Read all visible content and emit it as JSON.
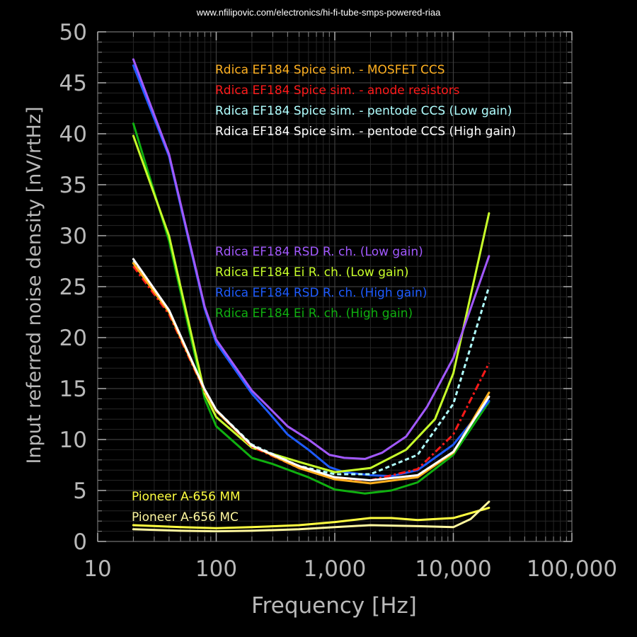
{
  "source_url": "www.nfilipovic.com/electronics/hi-fi-tube-smps-powered-riaa",
  "colors": {
    "background": "#000000",
    "grid_major": "#3c3c3c",
    "grid_minor": "#262626",
    "axis_text": "#b9b9b9"
  },
  "chart_data": {
    "type": "line",
    "xscale": "log",
    "xlabel": "Frequency [Hz]",
    "ylabel": "Input referred noise density [nV/rtHz]",
    "xlim": [
      10,
      100000
    ],
    "ylim": [
      0,
      50
    ],
    "xticks": [
      10,
      100,
      1000,
      10000,
      100000
    ],
    "xtick_labels": [
      "10",
      "100",
      "1,000",
      "10,000",
      "100,000"
    ],
    "yticks": [
      0,
      5,
      10,
      15,
      20,
      25,
      30,
      35,
      40,
      45,
      50
    ],
    "ytick_labels": [
      "0",
      "5",
      "10",
      "15",
      "20",
      "25",
      "30",
      "35",
      "40",
      "45",
      "50"
    ],
    "grid": true,
    "legend_groups": [
      {
        "placement": "top-center",
        "entries": [
          "Rdica EF184 Spice sim. - MOSFET CCS",
          "Rdica EF184 Spice sim. - anode resistors",
          "Rdica EF184 Spice sim. - pentode CCS (Low gain)",
          "Rdica EF184 Spice sim. - pentode CCS (High gain)"
        ]
      },
      {
        "placement": "center",
        "entries": [
          "Rdica EF184 RSD R. ch. (Low gain)",
          "Rdica EF184 Ei R. ch. (Low gain)",
          "Rdica EF184 RSD R. ch. (High gain)",
          "Rdica EF184 Ei R. ch. (High gain)"
        ]
      },
      {
        "placement": "bottom-left",
        "entries": [
          "Pioneer A-656 MM",
          "Pioneer A-656 MC"
        ]
      }
    ],
    "series": [
      {
        "name": "Rdica EF184 Spice sim. - MOSFET CCS",
        "color": "#ffb020",
        "dash": "solid",
        "x": [
          20,
          40,
          80,
          100,
          200,
          500,
          1000,
          2000,
          5000,
          10000,
          20000
        ],
        "y": [
          27.3,
          22.5,
          14.8,
          12.8,
          9.4,
          7.2,
          6.1,
          5.7,
          6.3,
          8.7,
          14.6
        ]
      },
      {
        "name": "Rdica EF184 Spice sim. - anode resistors",
        "color": "#ff1a1a",
        "dash": "dashdot",
        "x": [
          20,
          40,
          80,
          100,
          200,
          500,
          1000,
          2000,
          5000,
          10000,
          20000
        ],
        "y": [
          27.0,
          22.3,
          14.7,
          12.8,
          9.3,
          7.2,
          6.2,
          6.0,
          7.1,
          10.5,
          17.5
        ]
      },
      {
        "name": "Rdica EF184 Spice sim. - pentode CCS (Low gain)",
        "color": "#b0ffff",
        "dash": "dash",
        "x": [
          20,
          40,
          80,
          100,
          200,
          500,
          1000,
          2000,
          5000,
          10000,
          20000
        ],
        "y": [
          27.5,
          22.6,
          14.9,
          12.9,
          9.5,
          7.4,
          6.6,
          6.6,
          8.5,
          13.5,
          25.0
        ]
      },
      {
        "name": "Rdica EF184 Spice sim. - pentode CCS (High gain)",
        "color": "#ffffff",
        "dash": "solid",
        "x": [
          20,
          40,
          80,
          100,
          200,
          500,
          1000,
          2000,
          5000,
          10000,
          20000
        ],
        "y": [
          27.7,
          22.7,
          14.9,
          12.9,
          9.4,
          7.4,
          6.3,
          6.0,
          6.5,
          8.8,
          14.2
        ]
      },
      {
        "name": "Rdica EF184 RSD R. ch. (Low gain)",
        "color": "#a259ff",
        "dash": "solid",
        "x": [
          20,
          40,
          80,
          100,
          200,
          270,
          400,
          600,
          900,
          1200,
          1800,
          2500,
          4000,
          6000,
          10000,
          20000
        ],
        "y": [
          47.3,
          38.0,
          23.0,
          19.8,
          14.8,
          13.3,
          11.3,
          10.0,
          8.5,
          8.2,
          8.1,
          8.7,
          10.3,
          13.2,
          18.0,
          28.0
        ]
      },
      {
        "name": "Rdica EF184 Ei R. ch. (Low gain)",
        "color": "#c8ff2a",
        "dash": "solid",
        "x": [
          20,
          40,
          80,
          100,
          200,
          500,
          1000,
          2000,
          4000,
          7000,
          10000,
          20000
        ],
        "y": [
          39.8,
          30.0,
          14.5,
          12.2,
          9.2,
          7.8,
          6.8,
          7.2,
          9.0,
          12.0,
          16.5,
          32.2
        ]
      },
      {
        "name": "Rdica EF184 RSD R. ch. (High gain)",
        "color": "#1e5bff",
        "dash": "solid",
        "x": [
          20,
          40,
          80,
          100,
          200,
          270,
          400,
          600,
          900,
          1200,
          2000,
          3000,
          5000,
          10000,
          20000
        ],
        "y": [
          46.7,
          37.8,
          22.8,
          19.5,
          14.5,
          12.8,
          10.5,
          9.0,
          7.3,
          6.8,
          6.5,
          6.4,
          7.0,
          9.5,
          13.8
        ]
      },
      {
        "name": "Rdica EF184 Ei R. ch. (High gain)",
        "color": "#10b010",
        "dash": "solid",
        "x": [
          20,
          40,
          80,
          100,
          200,
          300,
          600,
          1000,
          1800,
          3000,
          5000,
          10000,
          20000
        ],
        "y": [
          41.0,
          29.5,
          14.0,
          11.3,
          8.2,
          7.6,
          6.3,
          5.1,
          4.7,
          5.0,
          5.8,
          8.5,
          13.7
        ]
      },
      {
        "name": "Pioneer A-656 MM",
        "color": "#ffff40",
        "dash": "solid",
        "x": [
          20,
          50,
          100,
          200,
          500,
          1000,
          2000,
          3000,
          5000,
          10000,
          20000
        ],
        "y": [
          1.6,
          1.4,
          1.3,
          1.4,
          1.6,
          1.9,
          2.3,
          2.3,
          2.1,
          2.3,
          3.3
        ]
      },
      {
        "name": "Pioneer A-656 MC",
        "color": "#fff8a0",
        "dash": "solid",
        "x": [
          20,
          50,
          100,
          200,
          500,
          1000,
          2000,
          5000,
          10000,
          14000,
          20000
        ],
        "y": [
          1.2,
          1.05,
          1.0,
          1.05,
          1.2,
          1.4,
          1.6,
          1.5,
          1.4,
          2.2,
          3.9
        ]
      }
    ]
  }
}
